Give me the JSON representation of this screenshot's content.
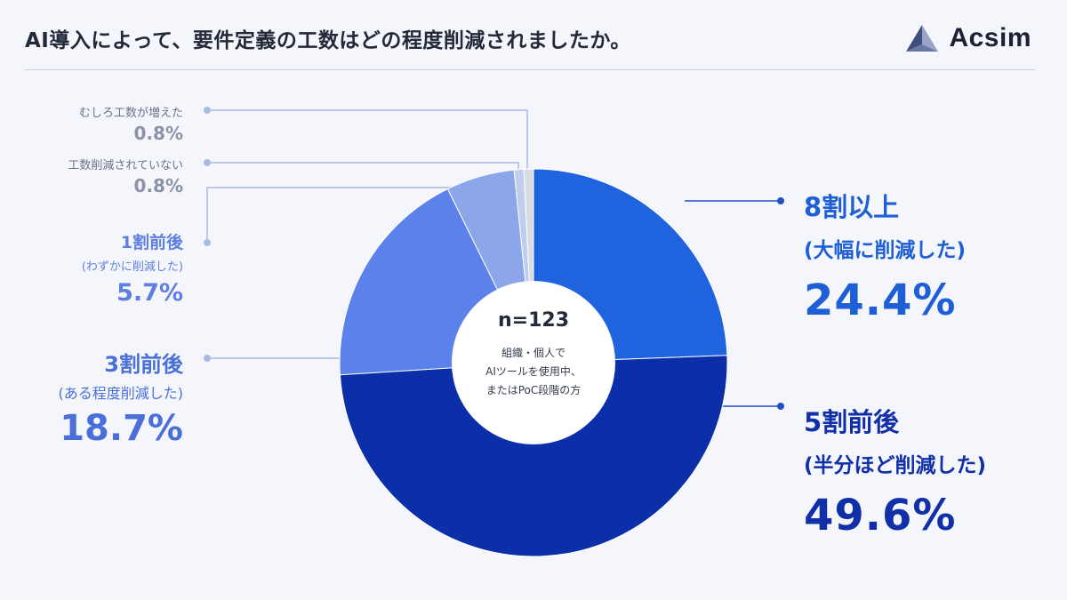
{
  "header": {
    "title": "AI導入によって、要件定義の工数はどの程度削減されましたか。",
    "logo_text": "Acsim",
    "logo_icon": "triangle-mark-icon"
  },
  "center": {
    "n_label": "n=123",
    "note_lines": [
      "組織・個人で",
      "AIツールを使用中、",
      "またはPoC段階の方"
    ]
  },
  "labels": {
    "increased": {
      "name": "むしろ工数が増えた",
      "pct": "0.8%"
    },
    "not_reduced": {
      "name": "工数削減されていない",
      "pct": "0.8%"
    },
    "reduce10": {
      "name": "1割前後",
      "sub": "(わずかに削減した)",
      "pct": "5.7%"
    },
    "reduce30": {
      "name": "3割前後",
      "sub": "(ある程度削減した)",
      "pct": "18.7%"
    },
    "reduce80": {
      "name": "8割以上",
      "sub": "(大幅に削減した)",
      "pct": "24.4%"
    },
    "reduce50": {
      "name": "5割前後",
      "sub": "(半分ほど削減した)",
      "pct": "49.6%"
    }
  },
  "chart_data": {
    "type": "pie",
    "variant": "donut",
    "categories": [
      "8割以上(大幅に削減した)",
      "5割前後(半分ほど削減した)",
      "3割前後(ある程度削減した)",
      "1割前後(わずかに削減した)",
      "工数削減されていない",
      "むしろ工数が増えた"
    ],
    "values": [
      24.4,
      49.6,
      18.7,
      5.7,
      0.8,
      0.8
    ],
    "colors": [
      "#1f63de",
      "#0a2fa8",
      "#5b82ea",
      "#8ba7ea",
      "#c0cdec",
      "#d6dbe6"
    ],
    "center_text": "n=123"
  },
  "colors": {
    "leader_line": "#aabbe3",
    "leader_line_dark": "#1f4fc8"
  }
}
